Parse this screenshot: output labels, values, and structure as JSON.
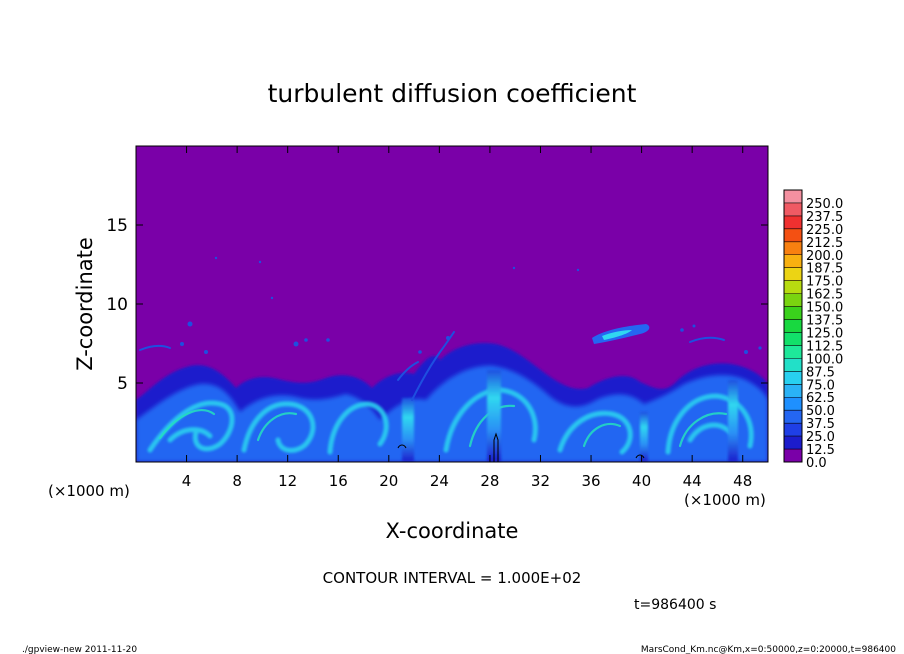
{
  "chart_data": {
    "type": "heatmap",
    "title": "turbulent diffusion coefficient",
    "xlabel": "X-coordinate",
    "ylabel": "Z-coordinate",
    "x_unit": "(×1000 m)",
    "y_unit": "(×1000 m)",
    "xlim": [
      0,
      50
    ],
    "ylim": [
      0,
      20
    ],
    "x_ticks": [
      "4",
      "8",
      "12",
      "16",
      "20",
      "24",
      "28",
      "32",
      "36",
      "40",
      "44",
      "48"
    ],
    "y_ticks": [
      "5",
      "10",
      "15"
    ],
    "grid": false,
    "colorbar": {
      "levels": [
        "0.0",
        "12.5",
        "25.0",
        "37.5",
        "50.0",
        "62.5",
        "75.0",
        "87.5",
        "100.0",
        "112.5",
        "125.0",
        "137.5",
        "150.0",
        "162.5",
        "175.0",
        "187.5",
        "200.0",
        "212.5",
        "225.0",
        "237.5",
        "250.0"
      ],
      "colors": [
        "#7a00a8",
        "#1c1ccc",
        "#1f3fe6",
        "#2466f2",
        "#1e90ff",
        "#2ab2f6",
        "#28d0f0",
        "#22e0c8",
        "#1ee89a",
        "#12e06a",
        "#18d840",
        "#3ad21c",
        "#7ad410",
        "#b8dc10",
        "#ecd414",
        "#f8b010",
        "#f88010",
        "#f45012",
        "#f03030",
        "#f05a64",
        "#f490a0"
      ]
    },
    "field_description": {
      "background_level": "0.0",
      "turbulent_layer_top_km": 5,
      "plume_columns_x_km": [
        4,
        10,
        21,
        28.5,
        39,
        47
      ]
    }
  },
  "annotations": {
    "contour_interval": "CONTOUR INTERVAL = 1.000E+02",
    "time": "t=986400 s",
    "footer_left": "./gpview-new   2011-11-20",
    "footer_right": "MarsCond_Km.nc@Km,x=0:50000,z=0:20000,t=986400"
  }
}
